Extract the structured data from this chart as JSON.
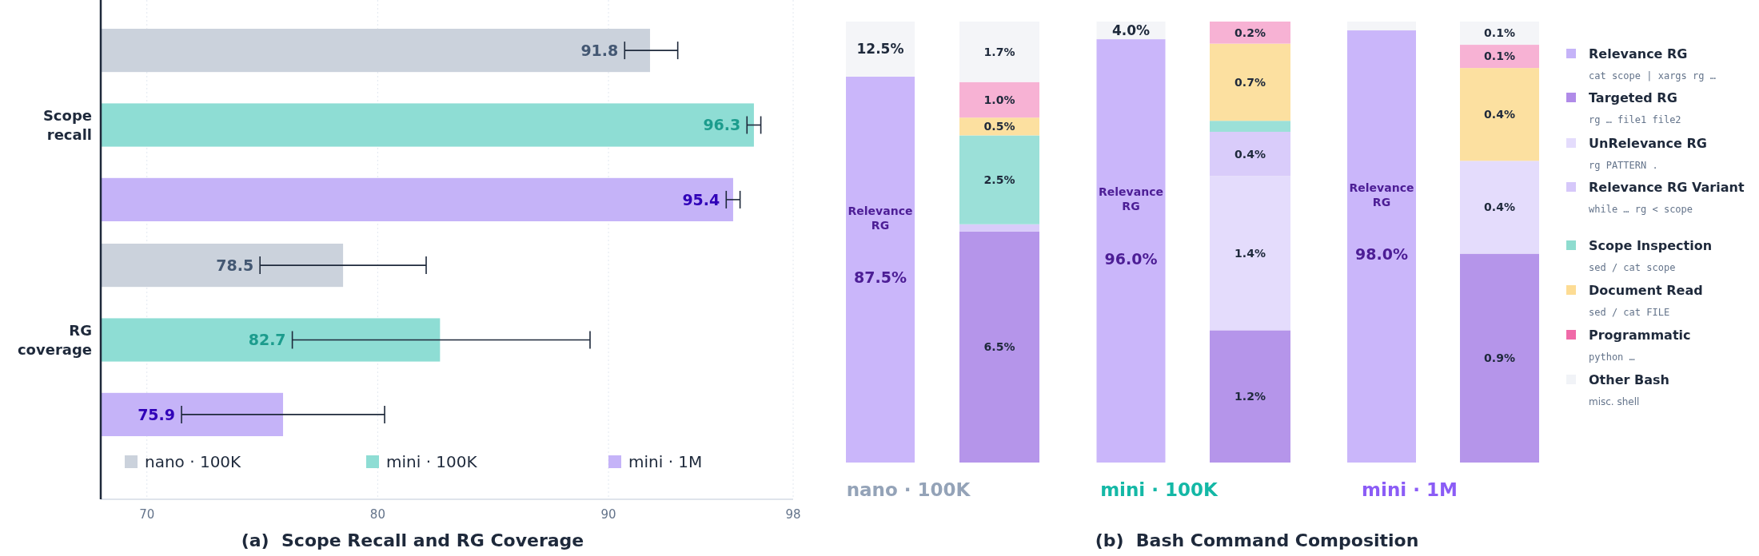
{
  "chart_data": [
    {
      "type": "bar",
      "orientation": "horizontal",
      "title": "(a)  Scope Recall and RG Coverage",
      "categories": [
        "Scope recall",
        "RG coverage"
      ],
      "xlim": [
        68,
        98
      ],
      "xticks": [
        70,
        80,
        90,
        98
      ],
      "grid": "x",
      "legend": "bottom",
      "data_labels": true,
      "series": [
        {
          "name": "nano · 100K",
          "color": "#cbd2dc",
          "values": [
            91.8,
            78.5
          ],
          "errors": [
            [
              90.7,
              93.0
            ],
            [
              74.9,
              82.1
            ]
          ]
        },
        {
          "name": "mini · 100K",
          "color": "#8eddd4",
          "values": [
            96.3,
            82.7
          ],
          "errors": [
            [
              96.0,
              96.6
            ],
            [
              76.3,
              89.2
            ]
          ]
        },
        {
          "name": "mini · 1M",
          "color": "#c5b3f8",
          "values": [
            95.4,
            75.9
          ],
          "errors": [
            [
              95.1,
              95.7
            ],
            [
              71.5,
              80.3
            ]
          ]
        }
      ]
    },
    {
      "type": "bar",
      "stacked": true,
      "categories": [
        null,
        null,
        null
      ],
      "ylim": [
        0,
        100
      ],
      "tick_labels": false,
      "annotations": [
        "nano · 100K",
        "mini · 100K",
        "mini · 1M"
      ],
      "series": [
        {
          "name": "Relevance RG",
          "color": "#cab6fa",
          "values": [
            87.5,
            96.0,
            98.0
          ],
          "value_labels": [
            "87.5%",
            "96.0%",
            "98.0%"
          ]
        },
        {
          "color": "#f4f5f8",
          "values": [
            12.5,
            4.0,
            2.0
          ],
          "value_labels": [
            "12.5%",
            "4.0%",
            null
          ]
        }
      ]
    },
    {
      "type": "bar",
      "stacked": true,
      "categories": [
        null
      ],
      "ylim": [
        0,
        12.4
      ],
      "tick_labels": false,
      "series": [
        {
          "color": "#b595ea",
          "values": [
            6.5
          ],
          "value_labels": [
            "6.5%"
          ]
        },
        {
          "color": "#d9ccfa",
          "values": [
            0.2
          ],
          "value_labels": [
            null
          ]
        },
        {
          "color": "#9be0d8",
          "values": [
            2.5
          ],
          "value_labels": [
            "2.5%"
          ]
        },
        {
          "color": "#fce0a0",
          "values": [
            0.5
          ],
          "value_labels": [
            "0.5%"
          ]
        },
        {
          "color": "#f7b2d4",
          "values": [
            1.0
          ],
          "value_labels": [
            "1.0%"
          ]
        },
        {
          "color": "#f4f5f8",
          "values": [
            1.7
          ],
          "value_labels": [
            "1.7%"
          ]
        }
      ]
    },
    {
      "type": "bar",
      "stacked": true,
      "categories": [
        null
      ],
      "ylim": [
        0,
        4.0
      ],
      "tick_labels": false,
      "series": [
        {
          "color": "#b595ea",
          "values": [
            1.2
          ],
          "value_labels": [
            "1.2%"
          ]
        },
        {
          "color": "#e4dcfc",
          "values": [
            1.4
          ],
          "value_labels": [
            "1.4%"
          ]
        },
        {
          "color": "#d9ccfa",
          "values": [
            0.4
          ],
          "value_labels": [
            "0.4%"
          ]
        },
        {
          "color": "#9be0d8",
          "values": [
            0.1
          ],
          "value_labels": [
            null
          ]
        },
        {
          "color": "#fce0a0",
          "values": [
            0.7
          ],
          "value_labels": [
            "0.7%"
          ]
        },
        {
          "color": "#f7b2d4",
          "values": [
            0.2
          ],
          "value_labels": [
            "0.2%"
          ]
        }
      ]
    },
    {
      "type": "bar",
      "stacked": true,
      "categories": [
        null
      ],
      "ylim": [
        0,
        1.9
      ],
      "tick_labels": false,
      "series": [
        {
          "color": "#b595ea",
          "values": [
            0.9
          ],
          "value_labels": [
            "0.9%"
          ]
        },
        {
          "color": "#e4dcfc",
          "values": [
            0.4
          ],
          "value_labels": [
            "0.4%"
          ]
        },
        {
          "color": "#fce0a0",
          "values": [
            0.4
          ],
          "value_labels": [
            "0.4%"
          ]
        },
        {
          "color": "#f7b2d4",
          "values": [
            0.1
          ],
          "value_labels": [
            "0.1%"
          ]
        },
        {
          "color": "#f4f5f8",
          "values": [
            0.1
          ],
          "value_labels": [
            "0.1%"
          ]
        }
      ]
    },
    {
      "type": "other",
      "title": "(b)  Bash Command Composition",
      "legend": "right",
      "series": [
        {
          "name": "Relevance RG",
          "color": "#c5b3f8"
        },
        {
          "name": "Targeted RG",
          "color": "#b08be8"
        },
        {
          "name": "UnRelevance RG",
          "color": "#e4dcfc"
        },
        {
          "name": "Relevance RG Variant",
          "color": "#d6c8fa"
        },
        {
          "name": "Scope Inspection",
          "color": "#8edccf"
        },
        {
          "name": "Document Read",
          "color": "#fddc94"
        },
        {
          "name": "Programmatic",
          "color": "#f06aa8"
        },
        {
          "name": "Other Bash",
          "color": "#f1f3f7"
        }
      ],
      "annotations": [
        "cat scope | xargs rg …",
        "rg … file1 file2",
        "rg PATTERN .",
        "while … rg < scope",
        "sed / cat scope",
        "sed / cat FILE",
        "python …",
        "misc. shell"
      ]
    }
  ]
}
